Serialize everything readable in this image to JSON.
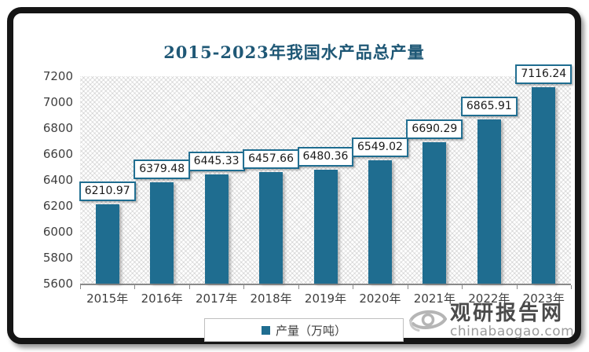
{
  "chart_data": {
    "type": "bar",
    "title": "2015-2023年我国水产品总产量",
    "categories": [
      "2015年",
      "2016年",
      "2017年",
      "2018年",
      "2019年",
      "2020年",
      "2021年",
      "2022年",
      "2023年"
    ],
    "series": [
      {
        "name": "产量（万吨）",
        "values": [
          6210.97,
          6379.48,
          6445.33,
          6457.66,
          6480.36,
          6549.02,
          6690.29,
          6865.91,
          7116.24
        ]
      }
    ],
    "value_labels": [
      "6210.97",
      "6379.48",
      "6445.33",
      "6457.66",
      "6480.36",
      "6549.02",
      "6690.29",
      "6865.91",
      "7116.24"
    ],
    "xlabel": "",
    "ylabel": "",
    "ylim": [
      5600,
      7200
    ],
    "ytick_interval": 200,
    "grid": false,
    "legend_position": "bottom",
    "plot_background": "diagonal-crosshatch",
    "bar_color": "#1F6D90"
  },
  "legend": {
    "label": "产量（万吨）"
  },
  "watermark": {
    "logo": "eye-swirl-logo",
    "brand": "观研报告网",
    "domain": "chinabaogao.com"
  },
  "colors": {
    "bar": "#1F6D90",
    "title": "#1F5876",
    "axis_text": "#3F3F3F",
    "axis_line": "#8A8A8A",
    "frame": "#151515",
    "label_border": "#1F6D90",
    "wm_brand": "#4A4A4A",
    "wm_domain": "#9B9B9B"
  }
}
